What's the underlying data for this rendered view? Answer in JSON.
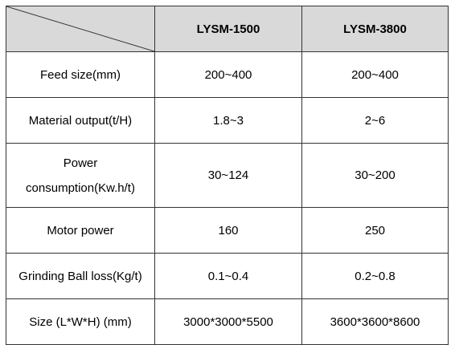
{
  "columns": [
    "",
    "LYSM-1500",
    "LYSM-3800"
  ],
  "rows": [
    {
      "label": "Feed size(mm)",
      "values": [
        "200~400",
        "200~400"
      ]
    },
    {
      "label": "Material output(t/H)",
      "values": [
        "1.8~3",
        "2~6"
      ]
    },
    {
      "label": "Power consumption(Kw.h/t)",
      "values": [
        "30~124",
        "30~200"
      ]
    },
    {
      "label": "Motor power",
      "values": [
        "160",
        "250"
      ]
    },
    {
      "label": "Grinding Ball loss(Kg/t)",
      "values": [
        "0.1~0.4",
        "0.2~0.8"
      ]
    },
    {
      "label": "Size (L*W*H) (mm)",
      "values": [
        "3000*3000*5500",
        "3600*3600*8600"
      ]
    }
  ]
}
